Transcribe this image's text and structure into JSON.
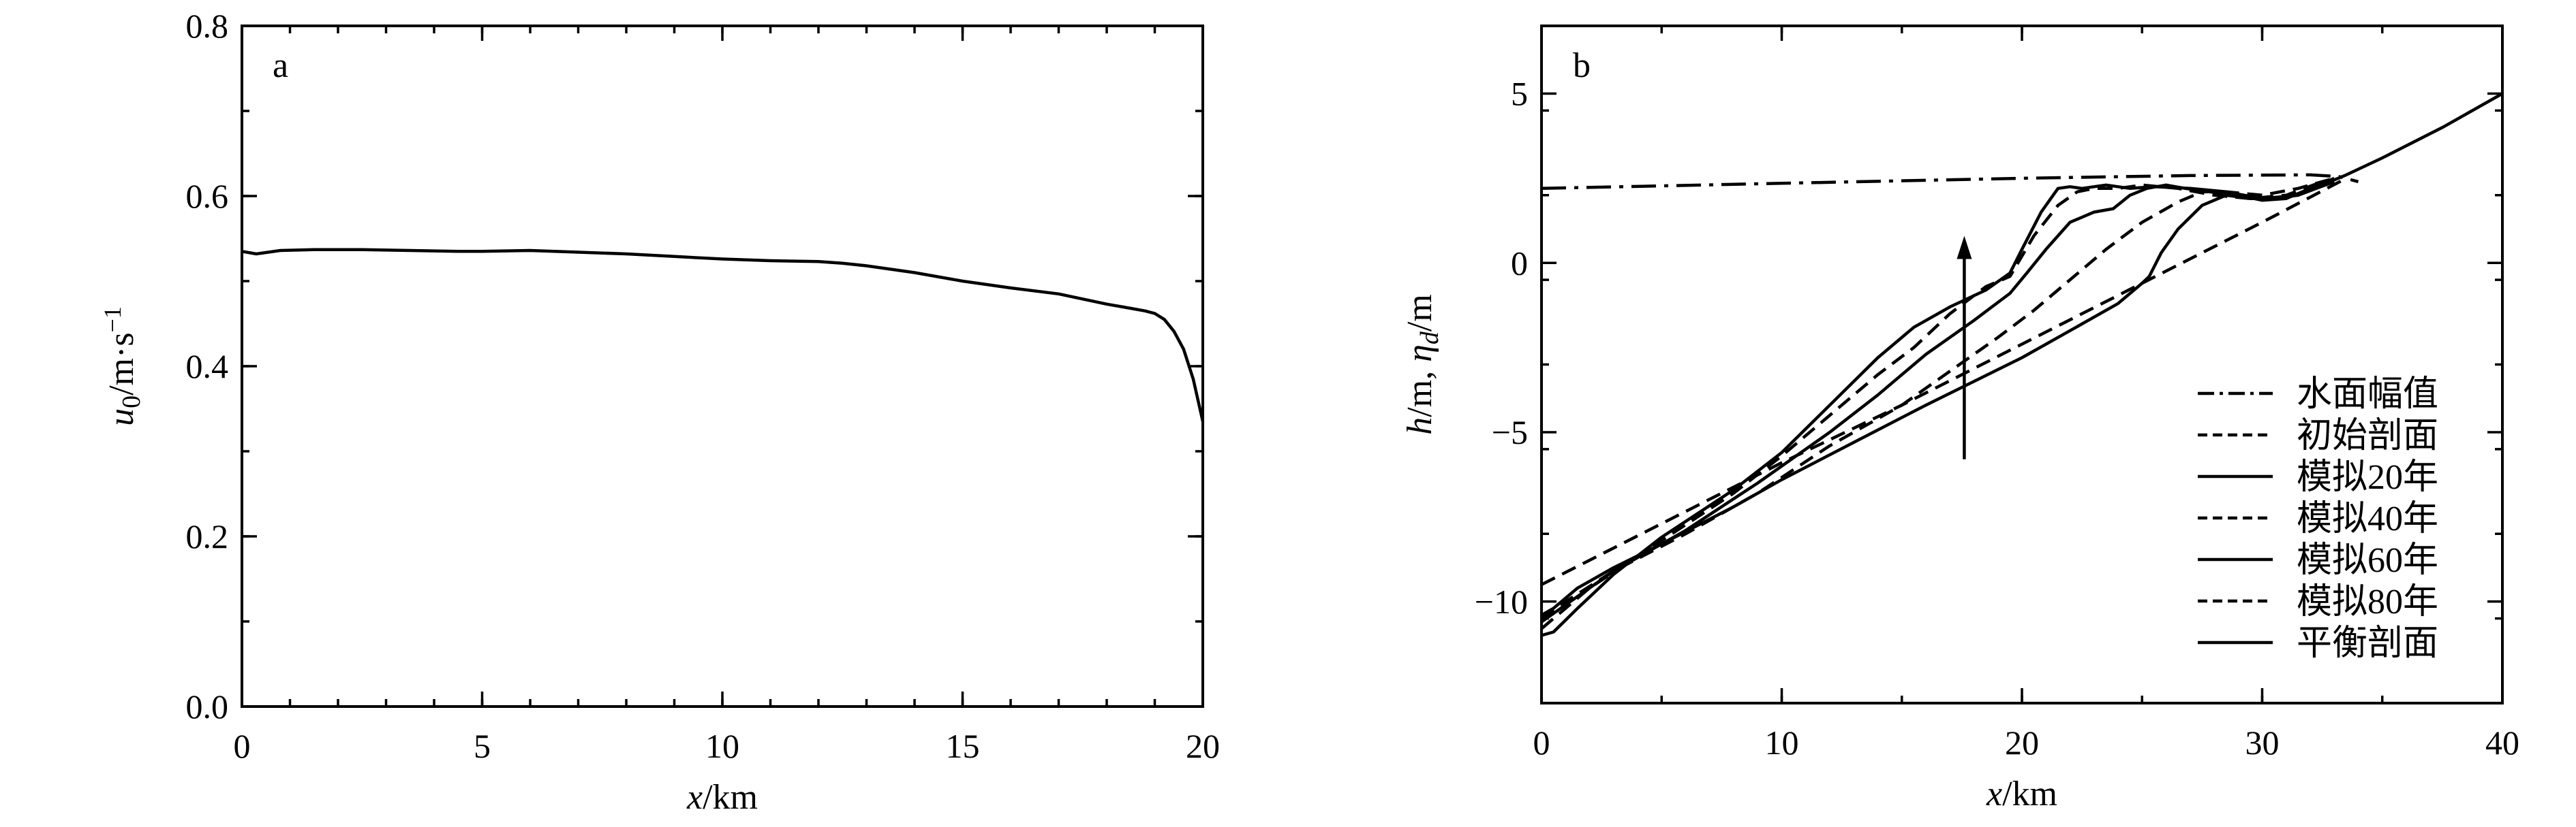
{
  "chart_data": [
    {
      "type": "line",
      "panel_label": "a",
      "xlabel": {
        "var": "x",
        "unit": "/km"
      },
      "ylabel": {
        "var": "u",
        "sub": "0",
        "unit": "/m·s",
        "sup": "−1"
      },
      "xlim": [
        0,
        20
      ],
      "ylim": [
        0.0,
        0.8
      ],
      "x_ticks": [
        "0",
        "5",
        "10",
        "15",
        "20"
      ],
      "y_ticks": [
        "0.0",
        "0.2",
        "0.4",
        "0.6",
        "0.8"
      ],
      "grid": false,
      "series": [
        {
          "style": "solid",
          "x": [
            0,
            0.3,
            0.8,
            1.5,
            2.5,
            3.5,
            4.5,
            5.0,
            6.0,
            7.0,
            8.0,
            9.0,
            10.0,
            11.0,
            12.0,
            12.5,
            13.0,
            14.0,
            15.0,
            16.0,
            17.0,
            17.5,
            18.0,
            18.5,
            18.8,
            19.0,
            19.2,
            19.4,
            19.6,
            19.8,
            20.0
          ],
          "y": [
            0.535,
            0.532,
            0.536,
            0.537,
            0.537,
            0.536,
            0.535,
            0.535,
            0.536,
            0.534,
            0.532,
            0.529,
            0.526,
            0.524,
            0.523,
            0.521,
            0.518,
            0.51,
            0.5,
            0.492,
            0.485,
            0.479,
            0.473,
            0.468,
            0.465,
            0.462,
            0.455,
            0.441,
            0.42,
            0.385,
            0.335
          ]
        }
      ]
    },
    {
      "type": "line",
      "panel_label": "b",
      "xlabel": {
        "var": "x",
        "unit": "/km"
      },
      "ylabel": {
        "var1": "h",
        "mid": "/m, ",
        "var2": "η",
        "sub": "d",
        "unit": "/m"
      },
      "xlim": [
        0,
        40
      ],
      "ylim": [
        -13,
        7
      ],
      "x_ticks": [
        "0",
        "10",
        "20",
        "30",
        "40"
      ],
      "y_ticks": [
        "−10",
        "−5",
        "0",
        "5"
      ],
      "grid": false,
      "legend": {
        "position": "right",
        "entries": [
          {
            "label": "水面幅值",
            "style": "dashdot"
          },
          {
            "label": "初始剖面",
            "style": "dashed"
          },
          {
            "label": "模拟20年",
            "style": "solid"
          },
          {
            "label": "模拟40年",
            "style": "dashed"
          },
          {
            "label": "模拟60年",
            "style": "solid"
          },
          {
            "label": "模拟80年",
            "style": "dashed"
          },
          {
            "label": "平衡剖面",
            "style": "solid"
          }
        ]
      },
      "arrow": {
        "x": 17.6,
        "y_from": -5.8,
        "y_to": 0.8
      },
      "series": [
        {
          "style": "dashdot",
          "x": [
            0,
            10,
            20,
            27,
            32,
            33.2,
            34
          ],
          "y": [
            2.2,
            2.35,
            2.5,
            2.58,
            2.6,
            2.55,
            2.4
          ]
        },
        {
          "style": "dashed",
          "x": [
            0,
            5,
            10,
            15,
            20,
            25,
            30,
            33.5
          ],
          "y": [
            -9.5,
            -7.7,
            -5.9,
            -4.2,
            -2.4,
            -0.6,
            1.2,
            2.5
          ]
        },
        {
          "style": "solid",
          "x": [
            0,
            0.5,
            1.5,
            3,
            5,
            8,
            10,
            13,
            16,
            18,
            20,
            22,
            24,
            25,
            25.3,
            25.8,
            26.5,
            27.5,
            28.5,
            29.5,
            30.5,
            31.5,
            32.5,
            33.5,
            35,
            37.5,
            40
          ],
          "y": [
            -10.4,
            -10.2,
            -9.6,
            -9.0,
            -8.3,
            -7.2,
            -6.4,
            -5.3,
            -4.2,
            -3.5,
            -2.8,
            -2.0,
            -1.2,
            -0.6,
            -0.4,
            0.3,
            1.0,
            1.7,
            2.0,
            1.9,
            1.9,
            2.0,
            2.3,
            2.6,
            3.1,
            4.0,
            5.0
          ]
        },
        {
          "style": "dashed",
          "x": [
            0,
            1,
            3,
            6,
            9,
            12,
            15,
            17,
            19,
            20.5,
            22,
            23.5,
            25,
            26.5,
            27.5,
            28.5,
            30,
            31.5,
            33
          ],
          "y": [
            -10.5,
            -10.0,
            -9.1,
            -8.0,
            -6.8,
            -5.4,
            -4.2,
            -3.2,
            -2.2,
            -1.4,
            -0.5,
            0.4,
            1.2,
            1.8,
            2.1,
            2.1,
            2.0,
            2.2,
            2.5
          ]
        },
        {
          "style": "solid",
          "x": [
            0,
            1,
            3,
            6,
            9,
            12,
            14,
            16,
            18,
            19.5,
            20.2,
            21,
            22,
            23,
            23.8,
            24.5,
            25.2,
            26,
            26.8,
            27.8,
            29,
            30,
            31,
            32,
            33
          ],
          "y": [
            -10.6,
            -10.1,
            -9.1,
            -7.9,
            -6.5,
            -5.0,
            -3.9,
            -2.7,
            -1.7,
            -0.9,
            -0.3,
            0.4,
            1.2,
            1.5,
            1.6,
            2.0,
            2.2,
            2.3,
            2.2,
            2.1,
            2.0,
            1.85,
            1.9,
            2.2,
            2.5
          ]
        },
        {
          "style": "dashed",
          "x": [
            0,
            2,
            5,
            8,
            10,
            12,
            14,
            15.5,
            17,
            18.5,
            19.5,
            20.5,
            21.5,
            22.3,
            23,
            24,
            25,
            26.5,
            28,
            29.5,
            31,
            32.5
          ],
          "y": [
            -10.8,
            -9.6,
            -8.2,
            -6.8,
            -5.7,
            -4.5,
            -3.3,
            -2.5,
            -1.5,
            -0.7,
            -0.4,
            0.8,
            1.7,
            2.1,
            2.2,
            2.2,
            2.3,
            2.2,
            2.0,
            1.9,
            2.0,
            2.4
          ]
        },
        {
          "style": "solid",
          "x": [
            0,
            0.5,
            1.5,
            3,
            5,
            8,
            10,
            12,
            14,
            15.5,
            17,
            18.5,
            19.5,
            20,
            20.8,
            21.5,
            22,
            22.5,
            23.5,
            24.5,
            25.5,
            27,
            28.5,
            30,
            31.5,
            33
          ],
          "y": [
            -11.0,
            -10.9,
            -10.2,
            -9.2,
            -8.1,
            -6.7,
            -5.6,
            -4.2,
            -2.8,
            -1.9,
            -1.3,
            -0.8,
            -0.3,
            0.4,
            1.5,
            2.2,
            2.25,
            2.2,
            2.3,
            2.2,
            2.25,
            2.2,
            2.1,
            1.9,
            2.0,
            2.4
          ]
        }
      ]
    }
  ]
}
